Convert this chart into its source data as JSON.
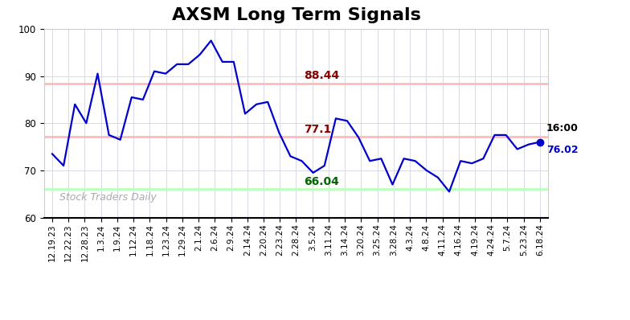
{
  "title": "AXSM Long Term Signals",
  "x_labels": [
    "12.19.23",
    "12.22.23",
    "12.28.23",
    "1.3.24",
    "1.9.24",
    "1.12.24",
    "1.18.24",
    "1.23.24",
    "1.29.24",
    "2.1.24",
    "2.6.24",
    "2.9.24",
    "2.14.24",
    "2.20.24",
    "2.23.24",
    "2.28.24",
    "3.5.24",
    "3.11.24",
    "3.14.24",
    "3.20.24",
    "3.25.24",
    "3.28.24",
    "4.3.24",
    "4.8.24",
    "4.11.24",
    "4.16.24",
    "4.19.24",
    "4.24.24",
    "5.7.24",
    "5.23.24",
    "6.18.24"
  ],
  "prices": [
    73.5,
    71.0,
    84.0,
    80.0,
    90.5,
    77.5,
    76.5,
    85.5,
    85.0,
    91.0,
    90.5,
    92.5,
    92.5,
    94.5,
    97.5,
    93.0,
    93.0,
    82.0,
    84.0,
    84.5,
    78.0,
    73.0,
    72.0,
    69.5,
    71.0,
    81.0,
    80.5,
    77.0,
    72.0,
    72.5,
    67.0,
    72.5,
    72.0,
    70.0,
    68.5,
    65.5,
    72.0,
    71.5,
    72.5,
    77.5,
    77.5,
    74.5,
    75.5,
    76.02
  ],
  "line_color": "#0000cc",
  "last_dot_color": "#0000cc",
  "hline_upper": 88.44,
  "hline_mid": 77.1,
  "hline_lower": 66.04,
  "hline_upper_color": "#ffbbbb",
  "hline_mid_color": "#ffbbbb",
  "hline_lower_color": "#bbffbb",
  "label_upper": "88.44",
  "label_mid": "77.1",
  "label_lower": "66.04",
  "label_upper_color": "#880000",
  "label_mid_color": "#880000",
  "label_lower_color": "#006600",
  "last_label_time": "16:00",
  "last_label_value": "76.02",
  "watermark": "Stock Traders Daily",
  "ylim_min": 60,
  "ylim_max": 100,
  "yticks": [
    60,
    70,
    80,
    90,
    100
  ],
  "background_color": "#ffffff",
  "grid_color": "#d8d8e8",
  "title_fontsize": 16,
  "tick_fontsize": 7.5
}
